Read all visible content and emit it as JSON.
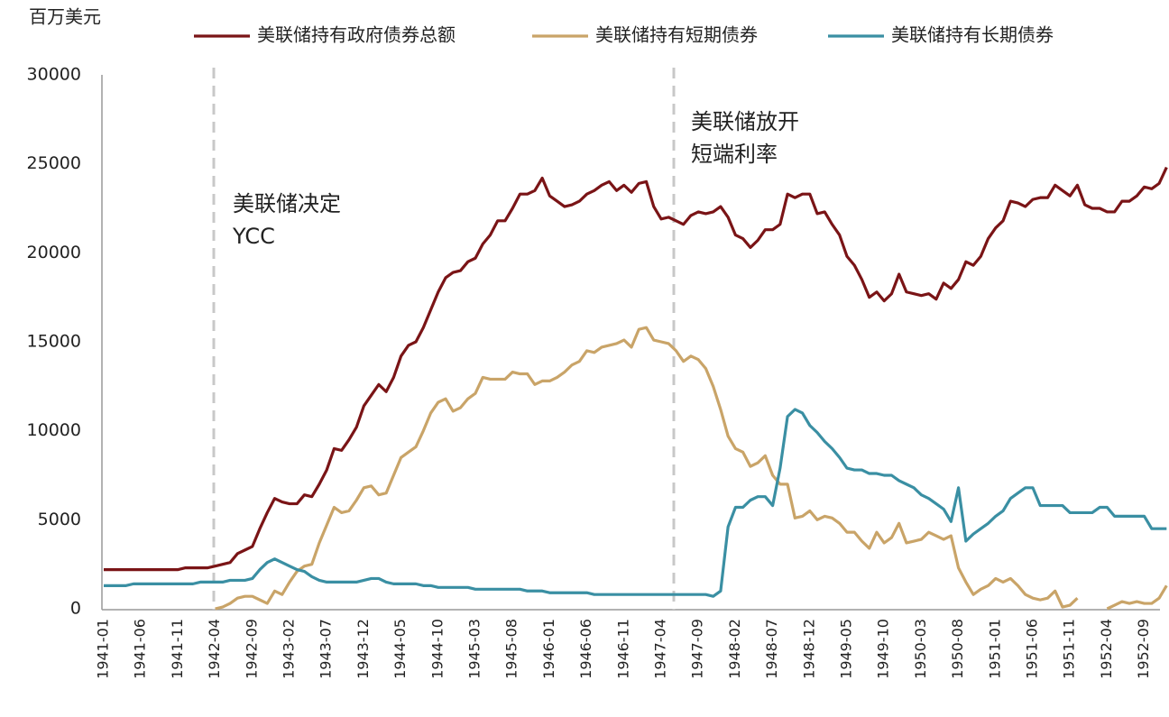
{
  "chart_data": {
    "type": "line",
    "y_label": "百万美元",
    "legend": "top",
    "grid": false,
    "annotations": [
      {
        "lines": [
          "美联储决定",
          "YCC"
        ]
      },
      {
        "lines": [
          "美联储放开",
          "短端利率"
        ]
      }
    ],
    "ylim": [
      0,
      30000
    ],
    "yticks": [
      0,
      5000,
      10000,
      15000,
      20000,
      25000,
      30000
    ],
    "categories": [
      "1941-01",
      null,
      null,
      null,
      null,
      "1941-06",
      null,
      null,
      null,
      null,
      "1941-11",
      null,
      null,
      null,
      null,
      "1942-04",
      null,
      null,
      null,
      null,
      "1942-09",
      null,
      null,
      null,
      null,
      "1943-02",
      null,
      null,
      null,
      null,
      "1943-07",
      null,
      null,
      null,
      null,
      "1943-12",
      null,
      null,
      null,
      null,
      "1944-05",
      null,
      null,
      null,
      null,
      "1944-10",
      null,
      null,
      null,
      null,
      "1945-03",
      null,
      null,
      null,
      null,
      "1945-08",
      null,
      null,
      null,
      null,
      "1946-01",
      null,
      null,
      null,
      null,
      "1946-06",
      null,
      null,
      null,
      null,
      "1946-11",
      null,
      null,
      null,
      null,
      "1947-04",
      null,
      null,
      null,
      null,
      "1947-09",
      null,
      null,
      null,
      null,
      "1948-02",
      null,
      null,
      null,
      null,
      "1948-07",
      null,
      null,
      null,
      null,
      "1948-12",
      null,
      null,
      null,
      null,
      "1949-05",
      null,
      null,
      null,
      null,
      "1949-10",
      null,
      null,
      null,
      null,
      "1950-03",
      null,
      null,
      null,
      null,
      "1950-08",
      null,
      null,
      null,
      null,
      "1951-01",
      null,
      null,
      null,
      null,
      "1951-06",
      null,
      null,
      null,
      null,
      "1951-11",
      null,
      null,
      null,
      null,
      "1952-04",
      null,
      null,
      null,
      null,
      "1952-09",
      null,
      null,
      null
    ],
    "series": [
      {
        "name": "美联储持有政府债券总额",
        "color": "#7a1416",
        "values": [
          2200,
          2200,
          2200,
          2200,
          2200,
          2200,
          2200,
          2200,
          2200,
          2200,
          2200,
          2300,
          2300,
          2300,
          2300,
          2400,
          2500,
          2600,
          3100,
          3300,
          3500,
          4500,
          5400,
          6200,
          6000,
          5900,
          5900,
          6400,
          6300,
          7000,
          7800,
          9000,
          8900,
          9500,
          10200,
          11400,
          12000,
          12600,
          12200,
          13000,
          14200,
          14800,
          15000,
          15800,
          16800,
          17800,
          18600,
          18900,
          19000,
          19500,
          19700,
          20500,
          21000,
          21800,
          21800,
          22500,
          23300,
          23300,
          23500,
          24200,
          23200,
          22900,
          22600,
          22700,
          22900,
          23300,
          23500,
          23800,
          24000,
          23500,
          23800,
          23400,
          23900,
          24000,
          22600,
          21900,
          22000,
          21800,
          21600,
          22100,
          22300,
          22200,
          22300,
          22600,
          22000,
          21000,
          20800,
          20300,
          20700,
          21300,
          21300,
          21600,
          23300,
          23100,
          23300,
          23300,
          22200,
          22300,
          21600,
          21000,
          19800,
          19300,
          18500,
          17500,
          17800,
          17300,
          17700,
          18800,
          17800,
          17700,
          17600,
          17700,
          17400,
          18300,
          18000,
          18500,
          19500,
          19300,
          19800,
          20800,
          21400,
          21800,
          22900,
          22800,
          22600,
          23000,
          23100,
          23100,
          23800,
          23500,
          23200,
          23800,
          22700,
          22500,
          22500,
          22300,
          22300,
          22900,
          22900,
          23200,
          23700,
          23600,
          23900,
          24800
        ]
      },
      {
        "name": "美联储持有短期债券",
        "color": "#c9a468",
        "values": [
          null,
          null,
          null,
          null,
          null,
          null,
          null,
          null,
          null,
          null,
          null,
          null,
          null,
          null,
          null,
          0,
          100,
          300,
          600,
          700,
          700,
          500,
          300,
          1000,
          800,
          1500,
          2100,
          2400,
          2500,
          3700,
          4700,
          5700,
          5400,
          5500,
          6100,
          6800,
          6900,
          6400,
          6500,
          7500,
          8500,
          8800,
          9100,
          10000,
          11000,
          11600,
          11800,
          11100,
          11300,
          11800,
          12100,
          13000,
          12900,
          12900,
          12900,
          13300,
          13200,
          13200,
          12600,
          12800,
          12800,
          13000,
          13300,
          13700,
          13900,
          14500,
          14400,
          14700,
          14800,
          14900,
          15100,
          14700,
          15700,
          15800,
          15100,
          15000,
          14900,
          14500,
          13900,
          14200,
          14000,
          13500,
          12500,
          11200,
          9700,
          9000,
          8800,
          8000,
          8200,
          8600,
          7500,
          7000,
          7000,
          5100,
          5200,
          5500,
          5000,
          5200,
          5100,
          4800,
          4300,
          4300,
          3800,
          3400,
          4300,
          3700,
          4000,
          4800,
          3700,
          3800,
          3900,
          4300,
          4100,
          3900,
          4100,
          2300,
          1500,
          800,
          1100,
          1300,
          1700,
          1500,
          1700,
          1300,
          800,
          600,
          500,
          600,
          1000,
          100,
          200,
          600,
          null,
          null,
          null,
          0,
          200,
          400,
          300,
          400,
          300,
          300,
          600,
          1300
        ]
      },
      {
        "name": "美联储持有长期债券",
        "color": "#3a8fa3",
        "values": [
          1300,
          1300,
          1300,
          1300,
          1400,
          1400,
          1400,
          1400,
          1400,
          1400,
          1400,
          1400,
          1400,
          1500,
          1500,
          1500,
          1500,
          1600,
          1600,
          1600,
          1700,
          2200,
          2600,
          2800,
          2600,
          2400,
          2200,
          2100,
          1800,
          1600,
          1500,
          1500,
          1500,
          1500,
          1500,
          1600,
          1700,
          1700,
          1500,
          1400,
          1400,
          1400,
          1400,
          1300,
          1300,
          1200,
          1200,
          1200,
          1200,
          1200,
          1100,
          1100,
          1100,
          1100,
          1100,
          1100,
          1100,
          1000,
          1000,
          1000,
          900,
          900,
          900,
          900,
          900,
          900,
          800,
          800,
          800,
          800,
          800,
          800,
          800,
          800,
          800,
          800,
          800,
          800,
          800,
          800,
          800,
          800,
          700,
          1000,
          4600,
          5700,
          5700,
          6100,
          6300,
          6300,
          5800,
          7900,
          10800,
          11200,
          11000,
          10300,
          9900,
          9400,
          9000,
          8500,
          7900,
          7800,
          7800,
          7600,
          7600,
          7500,
          7500,
          7200,
          7000,
          6800,
          6400,
          6200,
          5900,
          5600,
          4900,
          6800,
          3800,
          4200,
          4500,
          4800,
          5200,
          5500,
          6200,
          6500,
          6800,
          6800,
          5800,
          5800,
          5800,
          5800,
          5400,
          5400,
          5400,
          5400,
          5700,
          5700,
          5200,
          5200,
          5200,
          5200,
          5200,
          4500,
          4500,
          4500
        ]
      }
    ]
  }
}
